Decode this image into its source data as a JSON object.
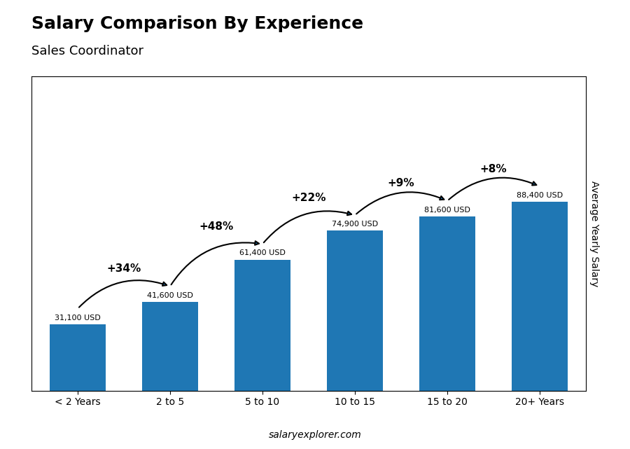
{
  "chart_data": {
    "type": "bar",
    "title": "Salary Comparison By Experience",
    "subtitle": "Sales Coordinator",
    "ylabel": "Average Yearly Salary",
    "watermark": "salaryexplorer.com",
    "categories": [
      "< 2 Years",
      "2 to 5",
      "5 to 10",
      "10 to 15",
      "15 to 20",
      "20+ Years"
    ],
    "values": [
      31100,
      41600,
      61400,
      74900,
      81600,
      88400
    ],
    "value_labels": [
      "31,100 USD",
      "41,600 USD",
      "61,400 USD",
      "74,900 USD",
      "81,600 USD",
      "88,400 USD"
    ],
    "data_labels": true,
    "annotations": [
      "+34%",
      "+48%",
      "+22%",
      "+9%",
      "+8%"
    ],
    "ylim": [
      0,
      147250
    ],
    "yticks": [],
    "tick_labels": "x",
    "grid": false
  }
}
